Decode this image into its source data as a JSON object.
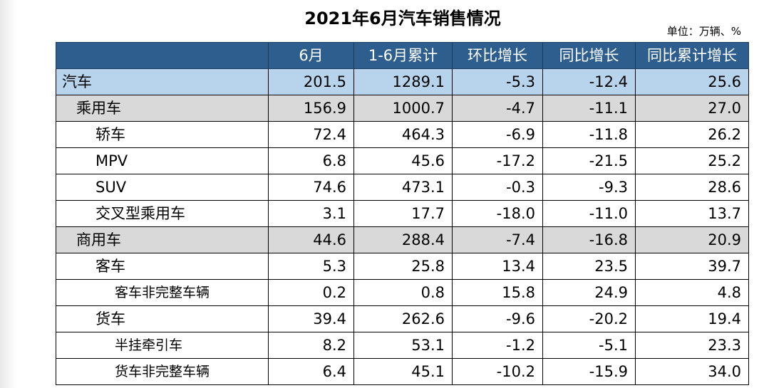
{
  "title": "2021年6月汽车销售情况",
  "unit": "单位：万辆、%",
  "columns": [
    "6月",
    "1-6月累计",
    "环比增长",
    "同比增长",
    "同比累计增长"
  ],
  "rows": [
    {
      "name": "汽车",
      "level": 0,
      "values": [
        "201.5",
        "1289.1",
        "-5.3",
        "-12.4",
        "25.6"
      ]
    },
    {
      "name": "乘用车",
      "level": 1,
      "values": [
        "156.9",
        "1000.7",
        "-4.7",
        "-11.1",
        "27.0"
      ]
    },
    {
      "name": "轿车",
      "level": 2,
      "values": [
        "72.4",
        "464.3",
        "-6.9",
        "-11.8",
        "26.2"
      ]
    },
    {
      "name": "MPV",
      "level": 2,
      "values": [
        "6.8",
        "45.6",
        "-17.2",
        "-21.5",
        "25.2"
      ]
    },
    {
      "name": "SUV",
      "level": 2,
      "values": [
        "74.6",
        "473.1",
        "-0.3",
        "-9.3",
        "28.6"
      ]
    },
    {
      "name": "交叉型乘用车",
      "level": 2,
      "values": [
        "3.1",
        "17.7",
        "-18.0",
        "-11.0",
        "13.7"
      ]
    },
    {
      "name": "商用车",
      "level": 1,
      "values": [
        "44.6",
        "288.4",
        "-7.4",
        "-16.8",
        "20.9"
      ]
    },
    {
      "name": "客车",
      "level": 3,
      "values": [
        "5.3",
        "25.8",
        "13.4",
        "23.5",
        "39.7"
      ]
    },
    {
      "name": "客车非完整车辆",
      "level": 4,
      "values": [
        "0.2",
        "0.8",
        "15.8",
        "24.9",
        "4.8"
      ]
    },
    {
      "name": "货车",
      "level": 3,
      "values": [
        "39.4",
        "262.6",
        "-9.6",
        "-20.2",
        "19.4"
      ]
    },
    {
      "name": "半挂牵引车",
      "level": 4,
      "values": [
        "8.2",
        "53.1",
        "-1.2",
        "-5.1",
        "23.3"
      ]
    },
    {
      "name": "货车非完整车辆",
      "level": 4,
      "values": [
        "6.4",
        "45.1",
        "-10.2",
        "-15.9",
        "34.0"
      ]
    }
  ]
}
